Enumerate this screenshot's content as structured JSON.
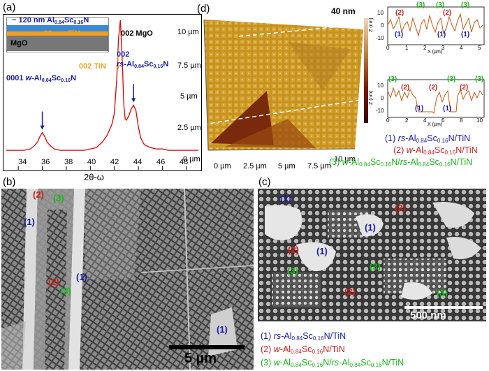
{
  "panel_labels": {
    "a": "(a)",
    "b": "(b)",
    "c": "(c)",
    "d": "(d)"
  },
  "xrd": {
    "inset_thickness_1": "~ 120 nm Al",
    "inset_sub_1": "0.84",
    "inset_mid_1": "Sc",
    "inset_sub_2": "0.16",
    "inset_end_1": "N",
    "inset_thickness_2": "~ 20 nm TiN",
    "inset_substrate": "MgO",
    "peak_mgo": "002 MgO",
    "peak_tin": "002 TiN",
    "peak_rs_idx": "002",
    "peak_rs_pre": "rs",
    "peak_rs_al": "-Al",
    "peak_w_idx": "0001",
    "peak_w_pre": "w",
    "peak_w_al": "-Al",
    "xlabel": "2θ-ω",
    "xticks": [
      "34",
      "36",
      "38",
      "40",
      "42",
      "44",
      "46",
      "48"
    ]
  },
  "chart_data": {
    "type": "line",
    "title": "",
    "xlabel": "2θ-ω",
    "ylabel": "",
    "xlim": [
      33,
      49
    ],
    "x": [
      33,
      33.5,
      34,
      34.5,
      35,
      35.3,
      35.6,
      35.8,
      36,
      36.2,
      36.4,
      36.7,
      37,
      37.5,
      38,
      38.5,
      39,
      39.5,
      40,
      40.5,
      41,
      41.4,
      41.8,
      42,
      42.2,
      42.35,
      42.5,
      42.65,
      42.8,
      42.9,
      43,
      43.2,
      43.4,
      43.6,
      43.8,
      44,
      44.2,
      44.5,
      45,
      45.5,
      46,
      46.5,
      47,
      47.5,
      48,
      48.5,
      49
    ],
    "values": [
      3,
      3,
      3,
      3,
      4,
      6,
      9,
      13,
      16,
      13,
      9,
      6,
      4,
      3,
      3,
      3,
      3,
      3,
      4,
      5,
      9,
      14,
      22,
      30,
      55,
      85,
      98,
      70,
      35,
      26,
      25,
      28,
      33,
      36,
      32,
      20,
      12,
      7,
      5,
      4,
      4,
      3,
      3,
      3,
      3,
      3,
      3
    ]
  },
  "afm": {
    "scale_top": "40 nm",
    "y_ticks": [
      "10 µm",
      "7.5 µm",
      "5 µm",
      "2.5 µm",
      "0 µm"
    ],
    "x_ticks": [
      "0 µm",
      "2.5 µm",
      "5 µm",
      "7.5 µm",
      "10 µm"
    ],
    "profile_ylabel": "Z (nm)",
    "profile_xlabel": "X (µm)",
    "p1_yticks": [
      "10",
      "0",
      "-10"
    ],
    "p1_xticks": [
      "0",
      "1",
      "2",
      "3",
      "4",
      "5"
    ],
    "p2_yticks": [
      "10",
      "0",
      "-10"
    ],
    "p2_xticks": [
      "0",
      "2",
      "4",
      "6",
      "8",
      "10"
    ]
  },
  "markers": {
    "m1": "(1)",
    "m2": "(2)",
    "m3": "(3)"
  },
  "legend": {
    "item1_pre": "rs",
    "item2_pre": "w",
    "al": "-Al",
    "sub_al": "0.84",
    "sc": "Sc",
    "sub_sc": "0.16",
    "n_tin": "N/TiN",
    "slash": "N/",
    "n": "N"
  },
  "sem_b": {
    "scale": "5 µm"
  },
  "sem_c": {
    "scale": "500 nm"
  },
  "colors": {
    "plot_line": "#e00000",
    "blue": "#1a1aa8",
    "red": "#d21e1e",
    "green": "#19b819",
    "orange": "#f0a020"
  }
}
